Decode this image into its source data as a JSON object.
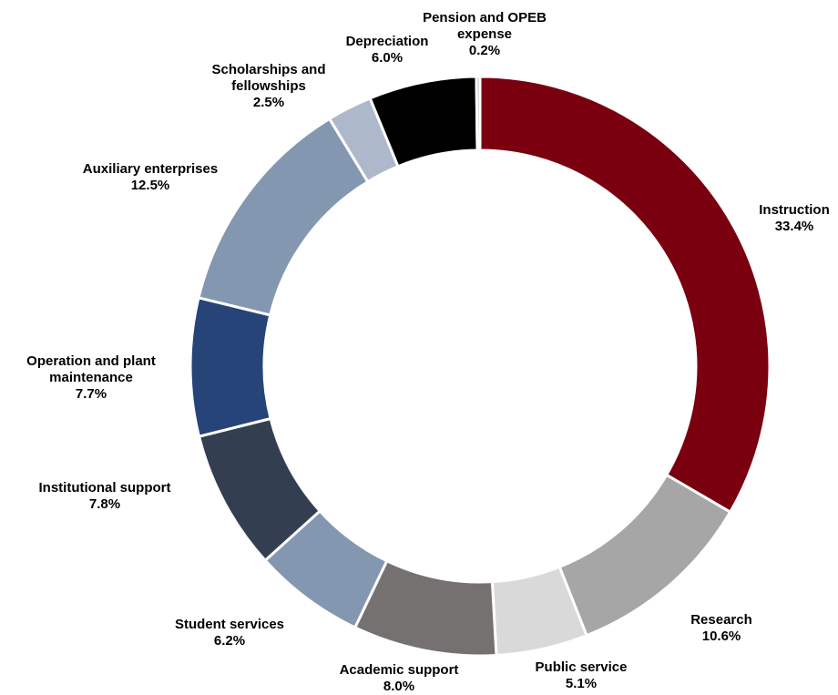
{
  "chart_data": {
    "type": "donut",
    "categories": [
      "Instruction",
      "Research",
      "Public service",
      "Academic support",
      "Student services",
      "Institutional support",
      "Operation and plant maintenance",
      "Auxiliary enterprises",
      "Scholarships and fellowships",
      "Depreciation",
      "Pension and OPEB expense"
    ],
    "values": [
      33.4,
      10.6,
      5.1,
      8.0,
      6.2,
      7.8,
      7.7,
      12.5,
      2.5,
      6.0,
      0.2
    ],
    "value_labels": [
      "33.4%",
      "10.6%",
      "5.1%",
      "8.0%",
      "6.2%",
      "7.8%",
      "7.7%",
      "12.5%",
      "2.5%",
      "6.0%",
      "0.2%"
    ],
    "colors": [
      "#7a0010",
      "#a6a6a6",
      "#d9d9d9",
      "#767171",
      "#8497b0",
      "#333f50",
      "#264478",
      "#8497b0",
      "#adb9ca",
      "#000000",
      "#adb9ca"
    ]
  }
}
